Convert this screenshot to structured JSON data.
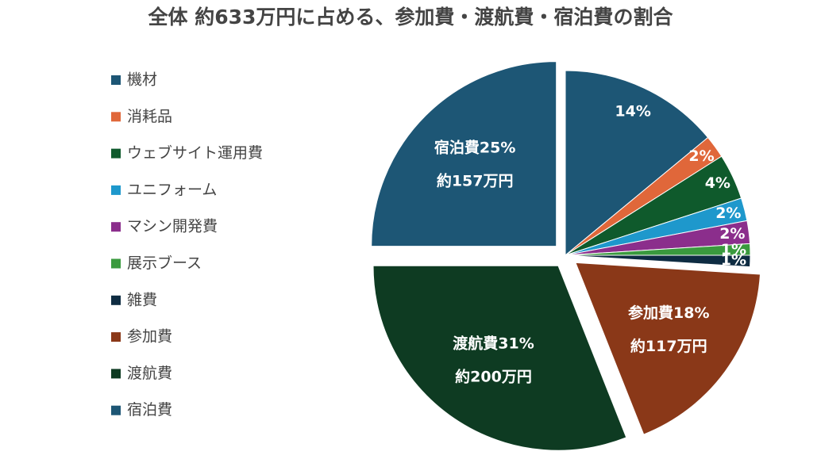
{
  "chart_data": {
    "type": "pie",
    "title": "全体 約633万円に占める、参加費・渡航費・宿泊費の割合",
    "categories": [
      "機材",
      "消耗品",
      "ウェブサイト運用費",
      "ユニフォーム",
      "マシン開発費",
      "展示ブース",
      "雑費",
      "参加費",
      "渡航費",
      "宿泊費"
    ],
    "values": [
      14,
      2,
      4,
      2,
      2,
      1,
      1,
      18,
      31,
      25
    ],
    "value_labels": [
      "14%",
      "2%",
      "4%",
      "2%",
      "2%",
      "1%",
      "1%",
      [
        "参加費18%",
        "約117万円"
      ],
      [
        "渡航費31%",
        "約200万円"
      ],
      [
        "宿泊費25%",
        "約157万円"
      ]
    ],
    "colors": [
      "#1d5675",
      "#e0673a",
      "#0f5a2c",
      "#1e98cc",
      "#8b2e8c",
      "#3a9a3e",
      "#0e2c42",
      "#8a3818",
      "#0e3b22",
      "#1d5675"
    ],
    "exploded": [
      false,
      false,
      false,
      false,
      false,
      false,
      false,
      true,
      true,
      true
    ],
    "legend": "left"
  }
}
